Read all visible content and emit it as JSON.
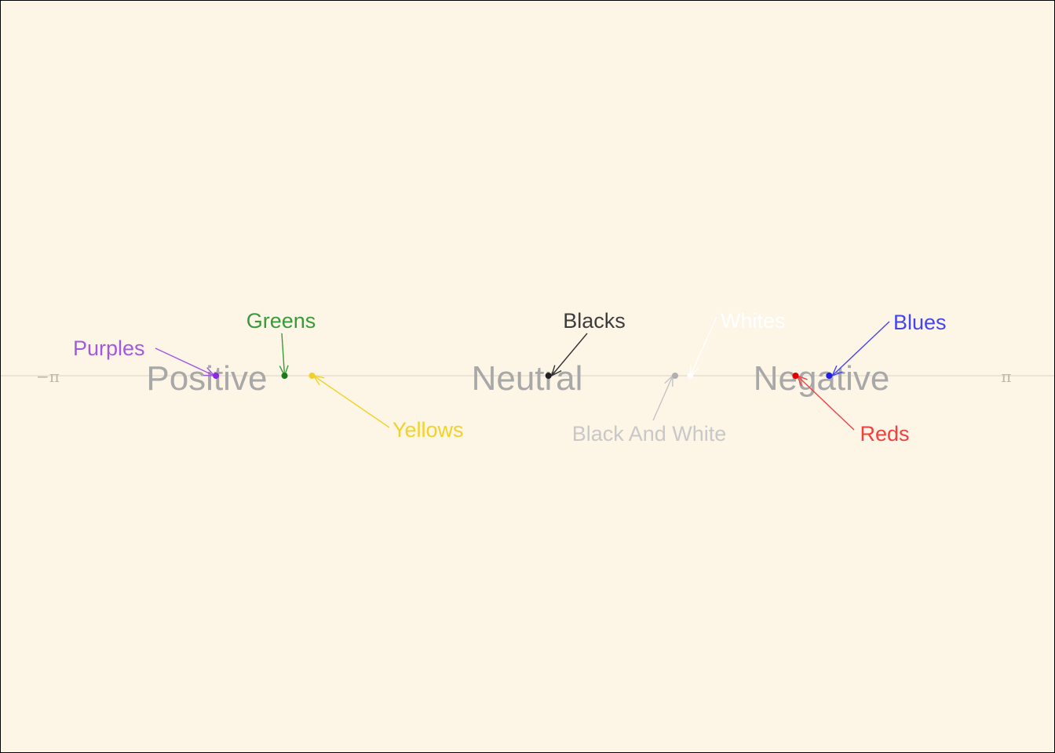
{
  "chart_data": {
    "type": "scatter",
    "title": "",
    "xlabel": "",
    "ylabel": "",
    "xlim": [
      -3.14159,
      3.14159
    ],
    "axis_end_labels": {
      "min": "−π",
      "max": "π"
    },
    "regions": [
      {
        "label": "Positive",
        "x": -2.1
      },
      {
        "label": "Neutral",
        "x": 0.0
      },
      {
        "label": "Negative",
        "x": 1.93
      }
    ],
    "points": [
      {
        "label": "Purples",
        "x": -2.04,
        "color": "#a259e0",
        "point_color": "#8a2be2",
        "label_color": "#a259e0"
      },
      {
        "label": "Greens",
        "x": -1.59,
        "color": "#3a9a3a",
        "point_color": "#1a7a1a",
        "label_color": "#3a9a3a"
      },
      {
        "label": "Yellows",
        "x": -1.41,
        "color": "#f2d22a",
        "point_color": "#f2d22a",
        "label_color": "#f2d22a"
      },
      {
        "label": "Blacks",
        "x": 0.14,
        "color": "#333333",
        "point_color": "#222222",
        "label_color": "#3d3d3d"
      },
      {
        "label": "Black And White",
        "x": 0.97,
        "color": "#c4c4c4",
        "point_color": "#b0b0b0",
        "label_color": "#c8c8c8"
      },
      {
        "label": "Whites",
        "x": 1.07,
        "color": "#ffffff",
        "point_color": "#ffffff",
        "label_color": "#ffffff"
      },
      {
        "label": "Reds",
        "x": 1.76,
        "color": "#f04040",
        "point_color": "#e00000",
        "label_color": "#f04040"
      },
      {
        "label": "Blues",
        "x": 1.98,
        "color": "#4545f0",
        "point_color": "#1e1ee6",
        "label_color": "#4545f0"
      }
    ]
  }
}
